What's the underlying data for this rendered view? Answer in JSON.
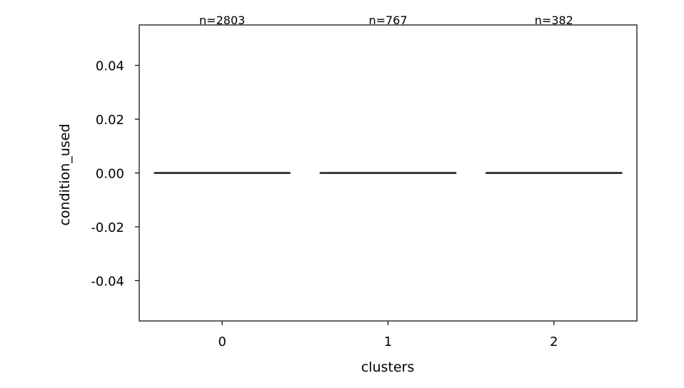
{
  "chart_data": {
    "type": "box",
    "xlabel": "clusters",
    "ylabel": "condition_used",
    "categories": [
      "0",
      "1",
      "2"
    ],
    "values": [
      0,
      0,
      0
    ],
    "box_stats": [
      {
        "category": "0",
        "min": 0,
        "q1": 0,
        "median": 0,
        "q3": 0,
        "max": 0
      },
      {
        "category": "1",
        "min": 0,
        "q1": 0,
        "median": 0,
        "q3": 0,
        "max": 0
      },
      {
        "category": "2",
        "min": 0,
        "q1": 0,
        "median": 0,
        "q3": 0,
        "max": 0
      }
    ],
    "annotations": [
      "n=2803",
      "n=767",
      "n=382"
    ],
    "ylim": [
      -0.055,
      0.055
    ],
    "yticks": [
      -0.04,
      -0.02,
      0.0,
      0.02,
      0.04
    ],
    "ytick_labels": [
      "-0.04",
      "-0.02",
      "0.00",
      "0.02",
      "0.04"
    ],
    "grid": false,
    "box_color": "#3d3d3d"
  }
}
